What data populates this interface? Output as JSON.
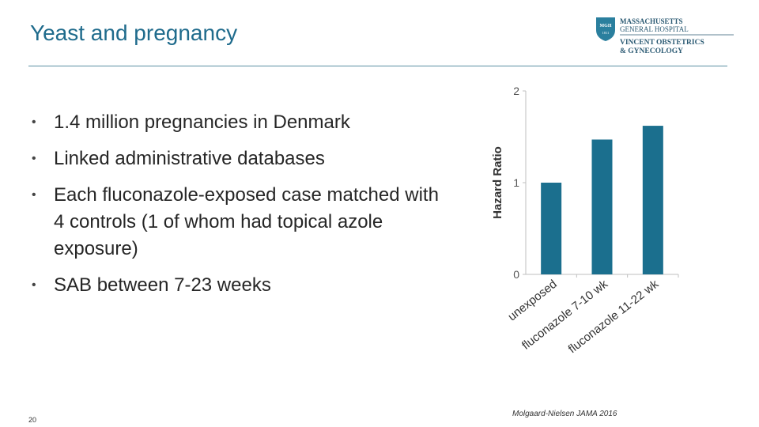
{
  "slide": {
    "title": "Yeast and pregnancy",
    "bullets": [
      "1.4 million pregnancies in Denmark",
      "Linked administrative databases",
      "Each fluconazole-exposed case matched with 4 controls  (1 of whom had topical azole exposure)",
      "SAB between 7-23 weeks"
    ],
    "page_number": "20",
    "citation": "Molgaard-Nielsen JAMA 2016"
  },
  "logo": {
    "line1": "MASSACHUSETTS",
    "line2": "GENERAL HOSPITAL",
    "line3": "VINCENT OBSTETRICS",
    "line4": "& GYNECOLOGY",
    "shield_text": "MGH",
    "shield_year": "1811",
    "colors": {
      "shield": "#2a7f9e",
      "text": "#2b5a73"
    }
  },
  "chart_data": {
    "type": "bar",
    "categories": [
      "unexposed",
      "fluconazole 7-10 wk",
      "fluconazole 11-22 wk"
    ],
    "values": [
      1.0,
      1.47,
      1.62
    ],
    "ylabel": "Hazard Ratio",
    "xlabel": "",
    "ylim": [
      0,
      2
    ],
    "yticks": [
      0,
      1,
      2
    ],
    "grid": false,
    "bar_color": "#1b6f8e"
  }
}
